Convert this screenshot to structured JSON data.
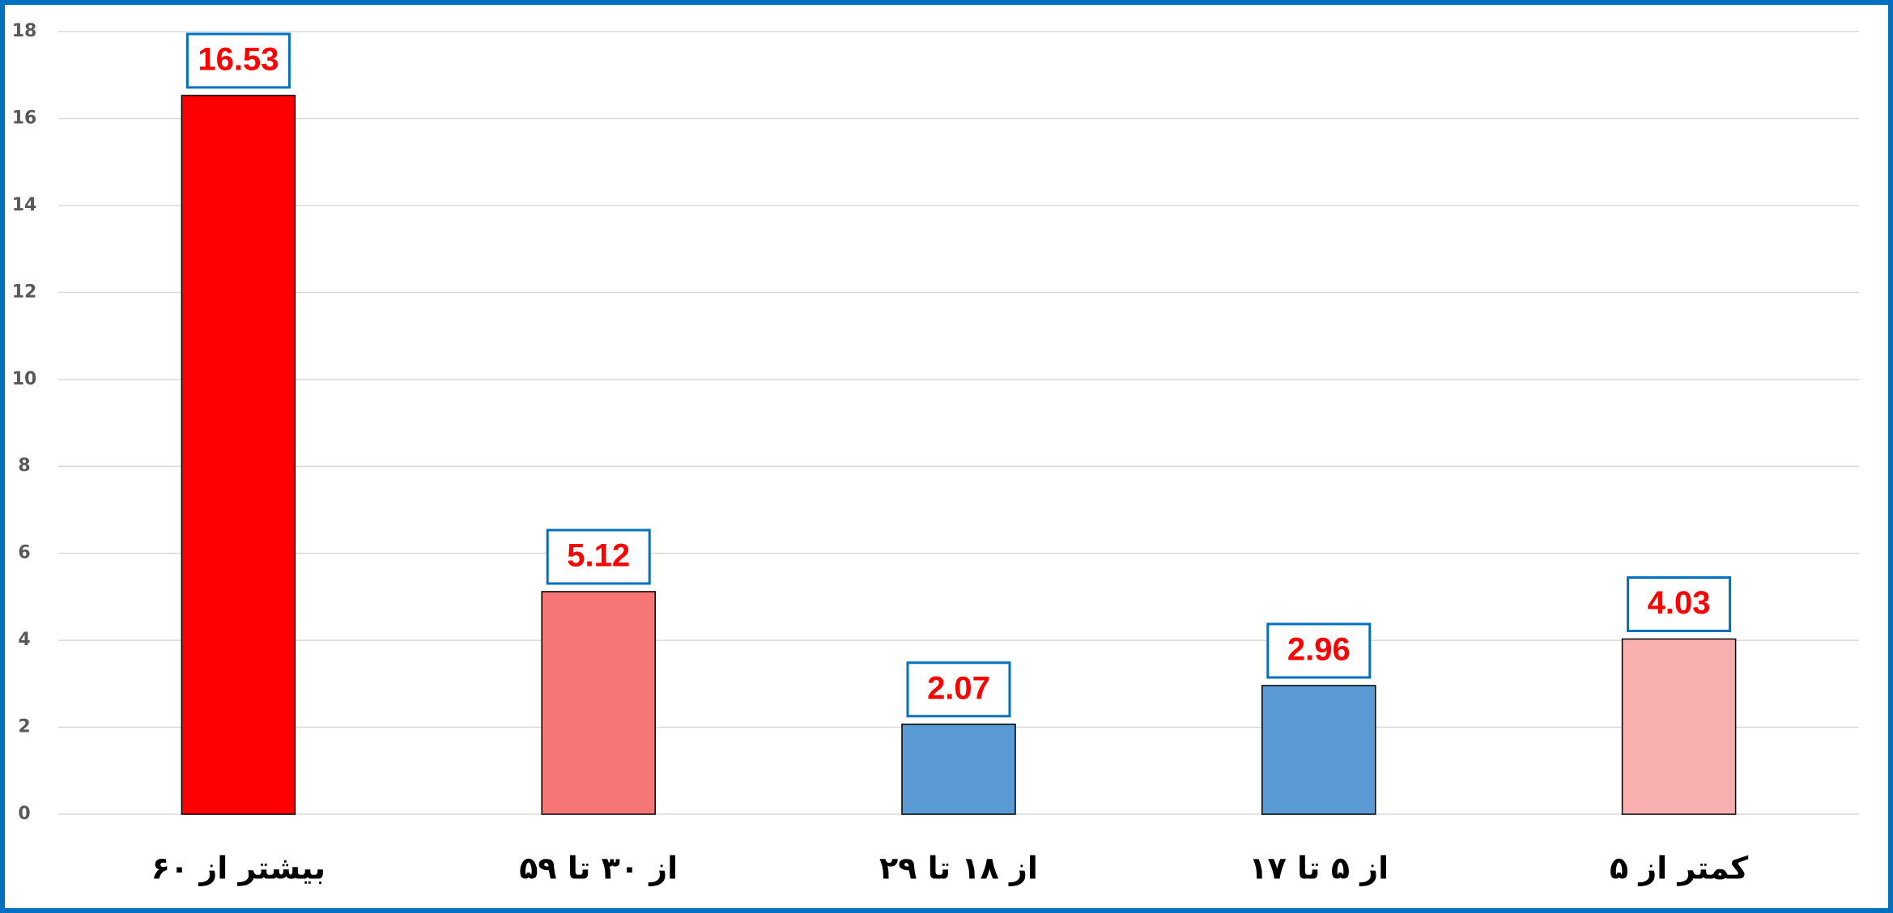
{
  "chart_data": {
    "type": "bar",
    "categories": [
      "بیشتر از ۶۰",
      "از ۳۰ تا ۵۹",
      "از ۱۸ تا ۲۹",
      "از ۵ تا ۱۷",
      "کمتر از ۵"
    ],
    "values": [
      16.53,
      5.12,
      2.07,
      2.96,
      4.03
    ],
    "colors": [
      "#ff0000",
      "#f67676",
      "#5b9bd5",
      "#5b9bd5",
      "#f8b0b0"
    ],
    "ylim": [
      0,
      18
    ],
    "yticks": [
      0,
      2,
      4,
      6,
      8,
      10,
      12,
      14,
      16,
      18
    ],
    "grid": true
  }
}
